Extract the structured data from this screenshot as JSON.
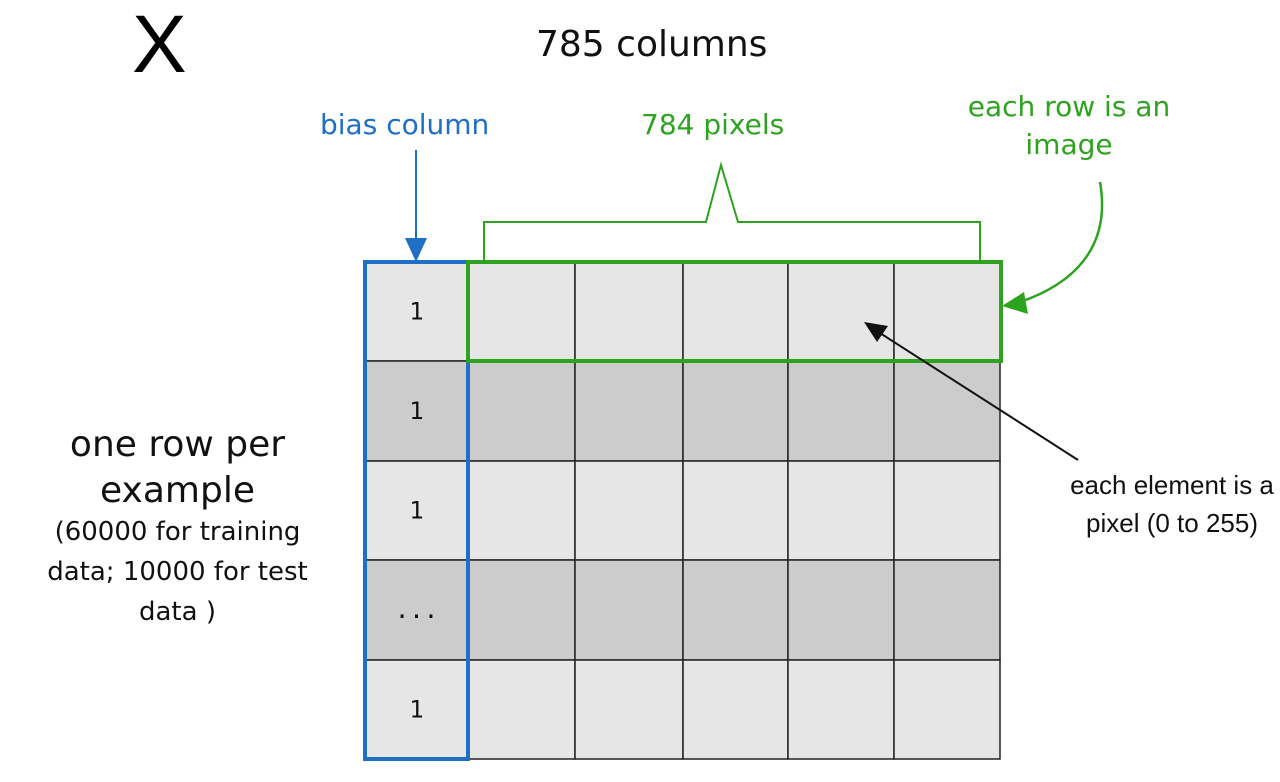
{
  "matrix_label": "X",
  "columns_label": "785 columns",
  "bias_column_label": "bias column",
  "pixels_label": "784 pixels",
  "row_image_label": "each row is an image",
  "element_label": "each element is a pixel (0 to 255)",
  "row_per_example_label": "one row per example",
  "row_count_note": "(60000 for training data; 10000 for test data )",
  "bias_values": [
    "1",
    "1",
    "1",
    "...",
    "1"
  ],
  "colors": {
    "bias": "#1f6fc5",
    "pixels": "#2ea31f",
    "light_row": "#e6e6e6",
    "dark_row": "#cccccc",
    "grid": "#222222"
  }
}
